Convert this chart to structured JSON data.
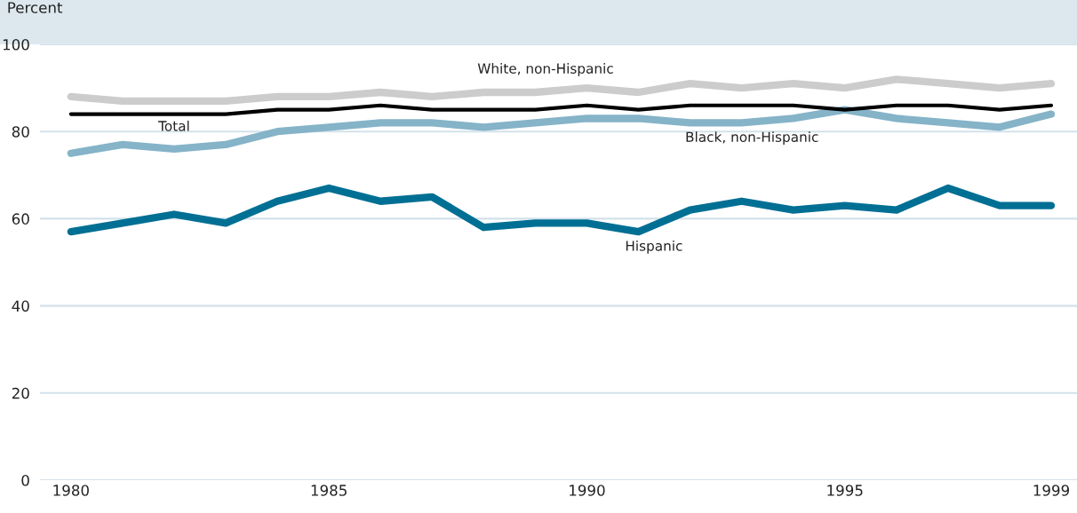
{
  "chart_data": {
    "type": "line",
    "ylabel": "Percent",
    "x": [
      1980,
      1981,
      1982,
      1983,
      1984,
      1985,
      1986,
      1987,
      1988,
      1989,
      1990,
      1991,
      1992,
      1993,
      1994,
      1995,
      1996,
      1997,
      1998,
      1999
    ],
    "series": [
      {
        "name": "White, non-Hispanic",
        "color": "#cccccc",
        "values": [
          88,
          87,
          87,
          87,
          88,
          88,
          89,
          88,
          89,
          89,
          90,
          89,
          91,
          90,
          91,
          90,
          92,
          91,
          90,
          91
        ]
      },
      {
        "name": "Total",
        "color": "#000000",
        "values": [
          84,
          84,
          84,
          84,
          85,
          85,
          86,
          85,
          85,
          85,
          86,
          85,
          86,
          86,
          86,
          85,
          86,
          86,
          85,
          86
        ]
      },
      {
        "name": "Black, non-Hispanic",
        "color": "#85b3c8",
        "values": [
          75,
          77,
          76,
          77,
          80,
          81,
          82,
          82,
          81,
          82,
          83,
          83,
          82,
          82,
          83,
          85,
          83,
          82,
          81,
          84
        ]
      },
      {
        "name": "Hispanic",
        "color": "#006f94",
        "values": [
          57,
          59,
          61,
          59,
          64,
          67,
          64,
          65,
          58,
          59,
          59,
          57,
          62,
          64,
          62,
          63,
          62,
          67,
          63,
          63
        ]
      }
    ],
    "xlim": [
      1979.4,
      1999.5
    ],
    "xticks": [
      1980,
      1985,
      1990,
      1995,
      1999
    ],
    "ylim": [
      0,
      100
    ],
    "yticks": [
      0,
      20,
      40,
      60,
      80,
      100
    ],
    "grid": "y",
    "legend": false,
    "marker": "none",
    "line_style": "solid"
  }
}
